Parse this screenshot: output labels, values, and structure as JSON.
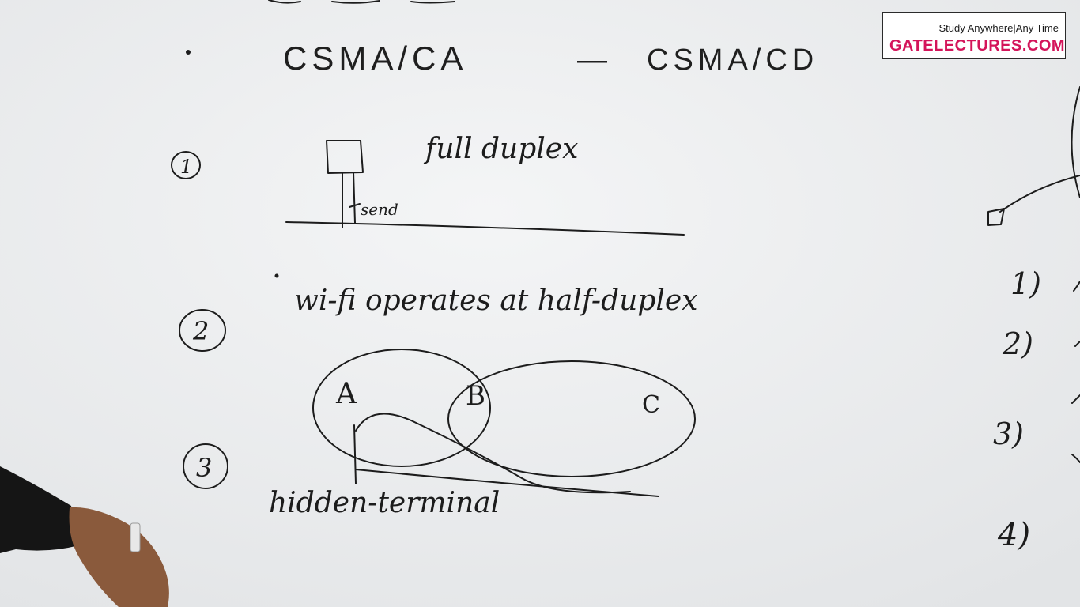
{
  "logo": {
    "tagline": "Study Anywhere|Any Time",
    "brand": "GATELECTURES.COM"
  },
  "board": {
    "heading_left": "CSMA/CA",
    "heading_dash": "—",
    "heading_right": "CSMA/CD",
    "item1": {
      "number": "1",
      "note": "full duplex",
      "arrow_label": "send"
    },
    "item2": {
      "number": "2",
      "note": "wi-fi operates at half-duplex"
    },
    "item3": {
      "number": "3",
      "node_a": "A",
      "node_b": "B",
      "node_c": "C",
      "note": "hidden-terminal"
    },
    "right_list": [
      "1)",
      "2)",
      "3)",
      "4)"
    ]
  }
}
